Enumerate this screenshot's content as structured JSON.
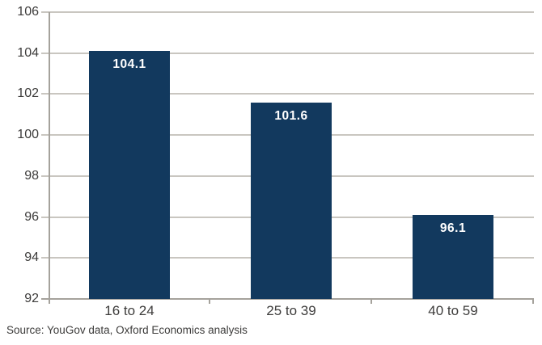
{
  "chart_data": {
    "type": "bar",
    "title": "",
    "xlabel": "",
    "ylabel": "",
    "categories": [
      "16 to 24",
      "25 to 39",
      "40 to 59"
    ],
    "values": [
      104.1,
      101.6,
      96.1
    ],
    "value_labels": [
      "104.1",
      "101.6",
      "96.1"
    ],
    "ylim": [
      92,
      106
    ],
    "yticks": [
      92,
      94,
      96,
      98,
      100,
      102,
      104,
      106
    ],
    "grid": true,
    "legend_position": "none",
    "bar_width_fraction": 0.5
  },
  "source_note": "Source: YouGov data, Oxford Economics analysis",
  "colors": {
    "bar": "#12395E",
    "bar_label_text": "#FFFFFF",
    "gridline": "#C9C6C0",
    "axis": "#A5A29C",
    "tick_label_text": "#3D3C3B",
    "source_text": "#3D3C3B",
    "background": "#FFFFFF"
  }
}
